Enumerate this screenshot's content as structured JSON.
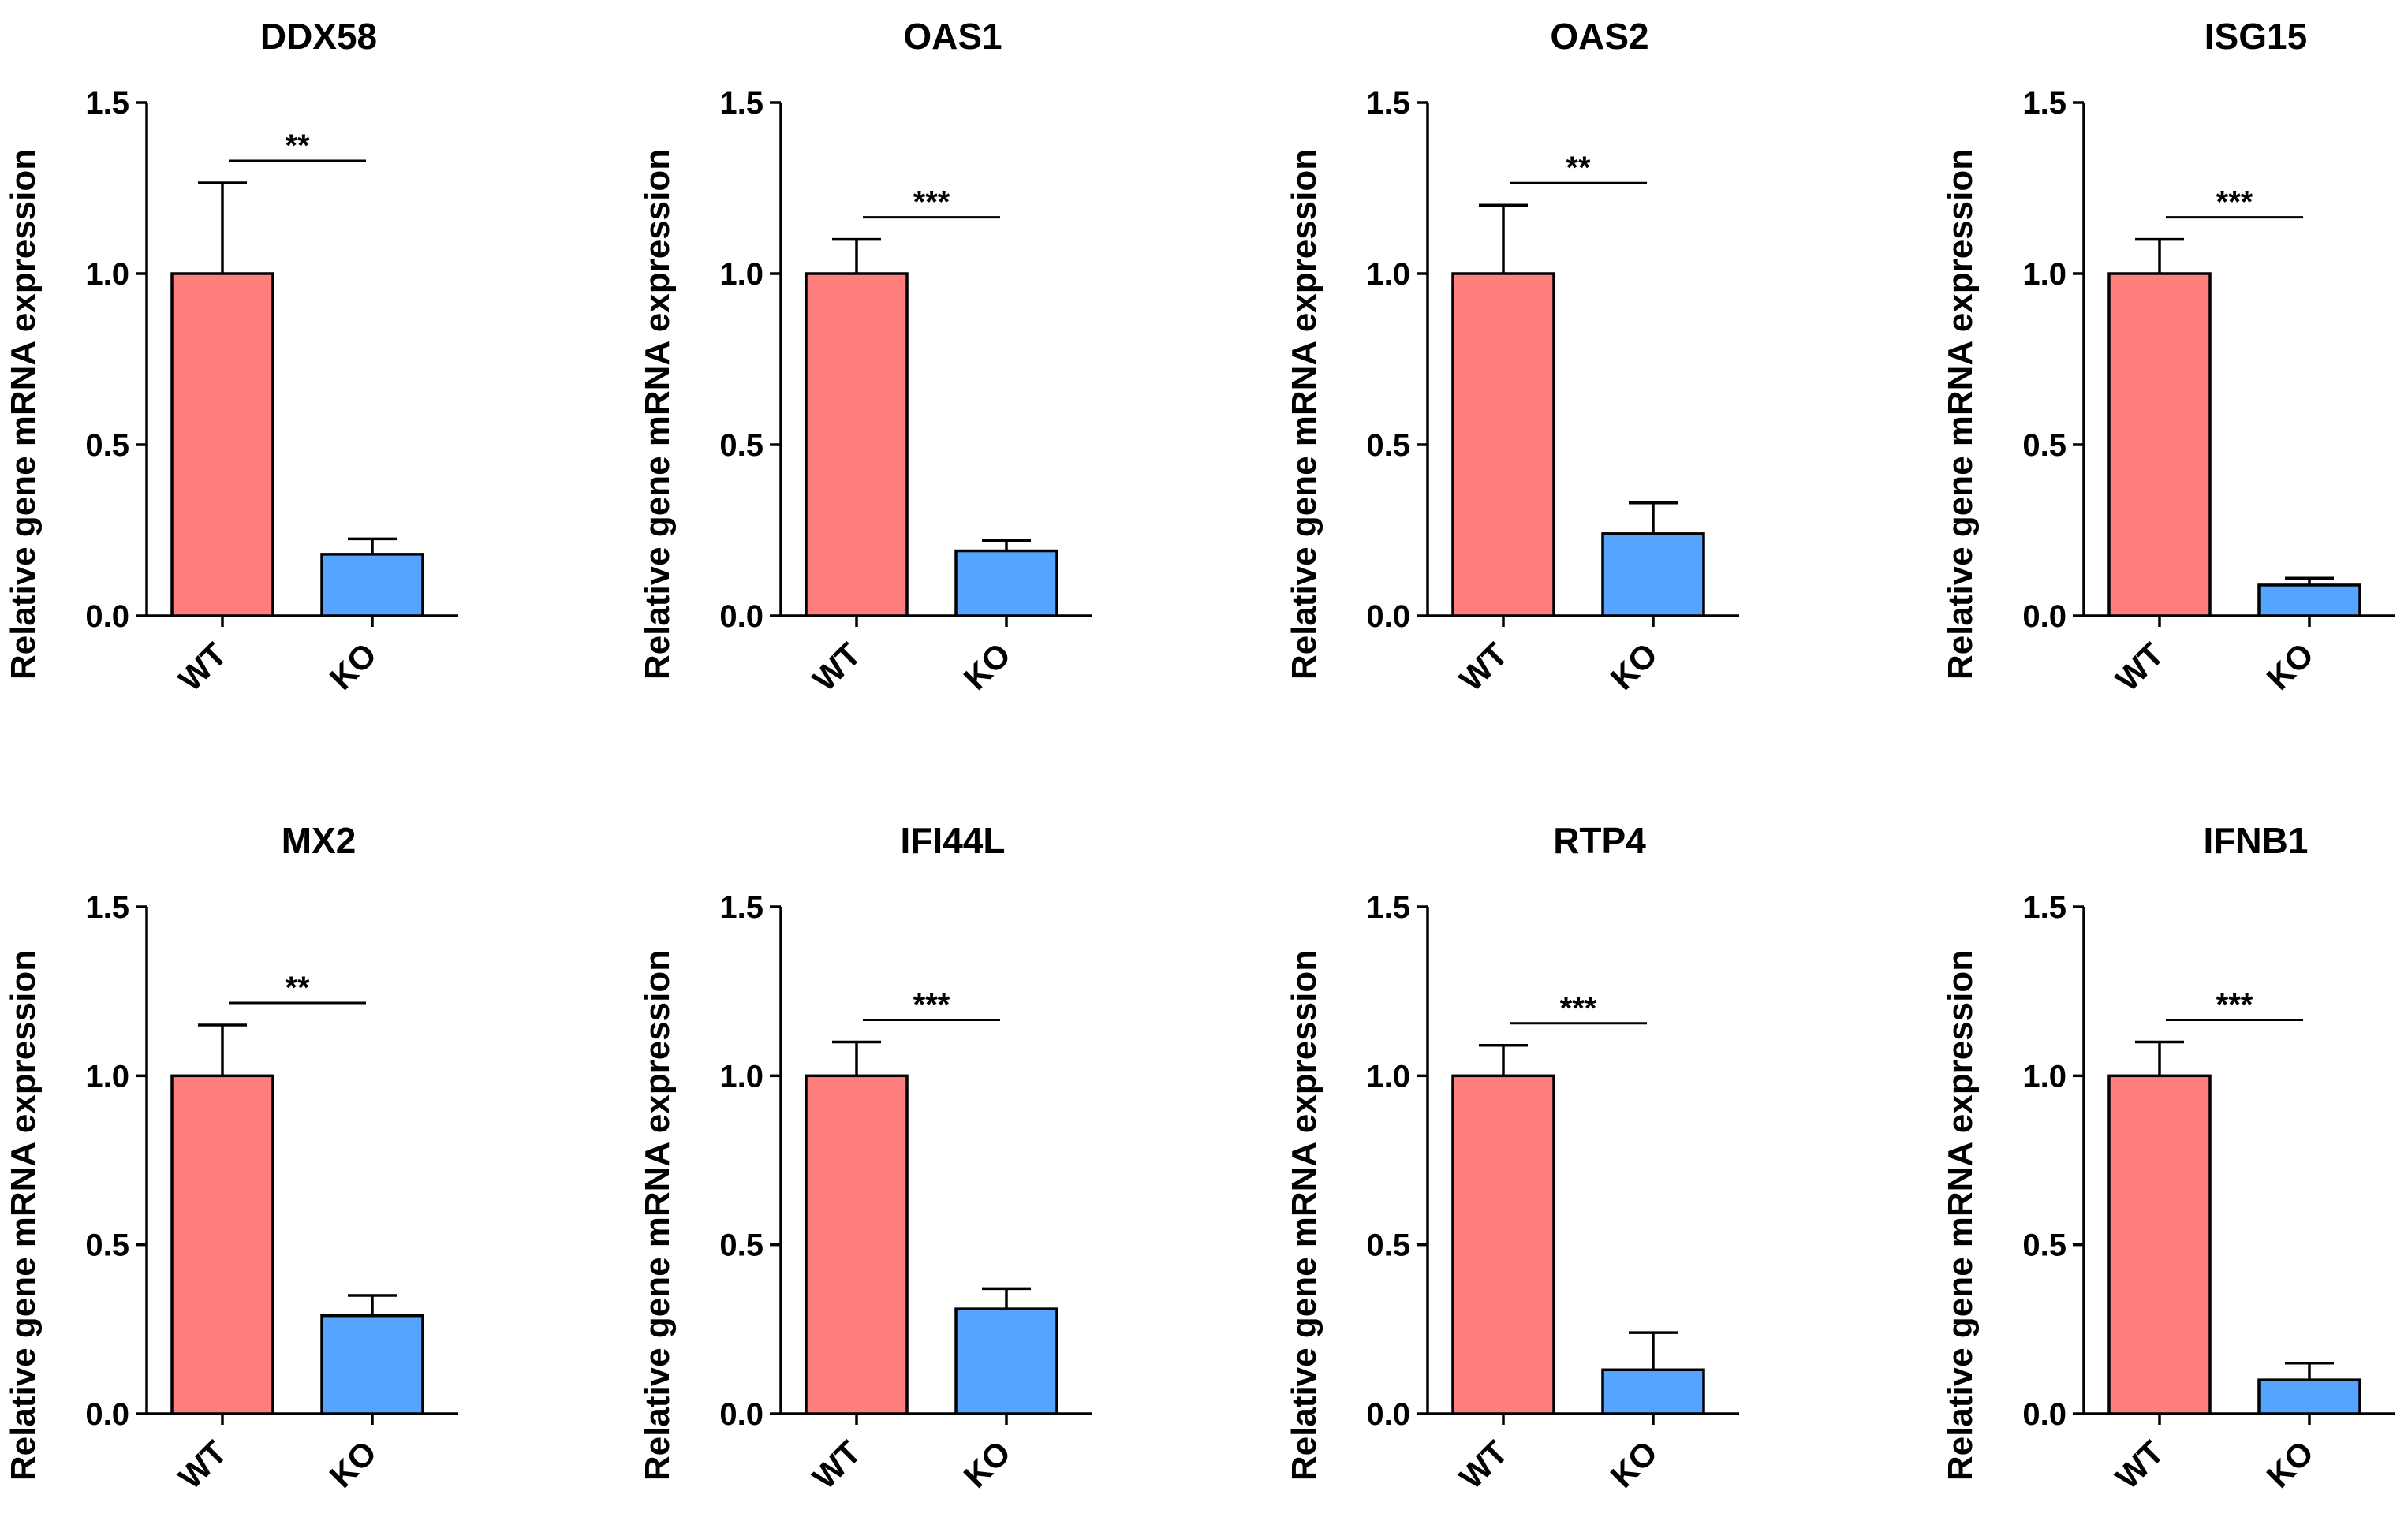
{
  "figure": {
    "bar_colors": {
      "WT": "#ff7f7f",
      "KO": "#55a4ff"
    }
  },
  "chart_data": [
    {
      "type": "bar",
      "title": "DDX58",
      "categories": [
        "WT",
        "KO"
      ],
      "values": [
        1.0,
        0.18
      ],
      "errors": [
        0.265,
        0.045
      ],
      "ylabel": "Relative gene mRNA expression",
      "ylim": [
        0,
        1.5
      ],
      "yticks": [
        "0.0",
        "0.5",
        "1.0",
        "1.5"
      ],
      "significance": "**"
    },
    {
      "type": "bar",
      "title": "OAS1",
      "categories": [
        "WT",
        "KO"
      ],
      "values": [
        1.0,
        0.19
      ],
      "errors": [
        0.1,
        0.03
      ],
      "ylabel": "Relative gene mRNA expression",
      "ylim": [
        0,
        1.5
      ],
      "yticks": [
        "0.0",
        "0.5",
        "1.0",
        "1.5"
      ],
      "significance": "***"
    },
    {
      "type": "bar",
      "title": "OAS2",
      "categories": [
        "WT",
        "KO"
      ],
      "values": [
        1.0,
        0.24
      ],
      "errors": [
        0.2,
        0.09
      ],
      "ylabel": "Relative gene mRNA expression",
      "ylim": [
        0,
        1.5
      ],
      "yticks": [
        "0.0",
        "0.5",
        "1.0",
        "1.5"
      ],
      "significance": "**"
    },
    {
      "type": "bar",
      "title": "ISG15",
      "categories": [
        "WT",
        "KO"
      ],
      "values": [
        1.0,
        0.09
      ],
      "errors": [
        0.1,
        0.02
      ],
      "ylabel": "Relative gene mRNA expression",
      "ylim": [
        0,
        1.5
      ],
      "yticks": [
        "0.0",
        "0.5",
        "1.0",
        "1.5"
      ],
      "significance": "***"
    },
    {
      "type": "bar",
      "title": "MX2",
      "categories": [
        "WT",
        "KO"
      ],
      "values": [
        1.0,
        0.29
      ],
      "errors": [
        0.15,
        0.06
      ],
      "ylabel": "Relative gene mRNA expression",
      "ylim": [
        0,
        1.5
      ],
      "yticks": [
        "0.0",
        "0.5",
        "1.0",
        "1.5"
      ],
      "significance": "**"
    },
    {
      "type": "bar",
      "title": "IFI44L",
      "categories": [
        "WT",
        "KO"
      ],
      "values": [
        1.0,
        0.31
      ],
      "errors": [
        0.1,
        0.06
      ],
      "ylabel": "Relative gene mRNA expression",
      "ylim": [
        0,
        1.5
      ],
      "yticks": [
        "0.0",
        "0.5",
        "1.0",
        "1.5"
      ],
      "significance": "***"
    },
    {
      "type": "bar",
      "title": "RTP4",
      "categories": [
        "WT",
        "KO"
      ],
      "values": [
        1.0,
        0.13
      ],
      "errors": [
        0.09,
        0.11
      ],
      "ylabel": "Relative gene mRNA expression",
      "ylim": [
        0,
        1.5
      ],
      "yticks": [
        "0.0",
        "0.5",
        "1.0",
        "1.5"
      ],
      "significance": "***"
    },
    {
      "type": "bar",
      "title": "IFNB1",
      "categories": [
        "WT",
        "KO"
      ],
      "values": [
        1.0,
        0.1
      ],
      "errors": [
        0.1,
        0.05
      ],
      "ylabel": "Relative gene mRNA expression",
      "ylim": [
        0,
        1.5
      ],
      "yticks": [
        "0.0",
        "0.5",
        "1.0",
        "1.5"
      ],
      "significance": "***"
    }
  ]
}
